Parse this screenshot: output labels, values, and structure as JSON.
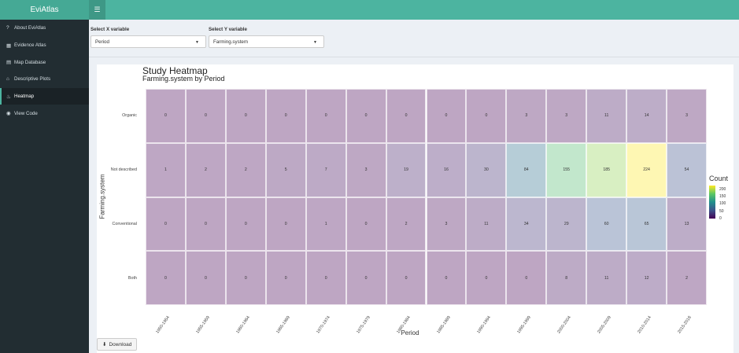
{
  "app": {
    "title": "EviAtlas",
    "menu_icon": "hamburger-icon"
  },
  "sidebar": {
    "items": [
      {
        "label": "About EviAtlas",
        "icon": "question-icon"
      },
      {
        "label": "Evidence Atlas",
        "icon": "map-icon"
      },
      {
        "label": "Map Database",
        "icon": "database-icon"
      },
      {
        "label": "Descriptive Plots",
        "icon": "home-icon"
      },
      {
        "label": "Heatmap",
        "icon": "fire-icon",
        "active": true
      },
      {
        "label": "View Code",
        "icon": "github-icon"
      }
    ]
  },
  "controls": {
    "x_label": "Select X variable",
    "x_value": "Period",
    "y_label": "Select Y variable",
    "y_value": "Farming.system"
  },
  "download_label": "Download",
  "chart_data": {
    "type": "heatmap",
    "title": "Study Heatmap",
    "subtitle": "Farming.system by Period",
    "xlabel": "Period",
    "ylabel": "Farming.system",
    "x": [
      "1950-1954",
      "1955-1959",
      "1960-1964",
      "1965-1969",
      "1970-1974",
      "1975-1979",
      "1980-1984",
      "1985-1989",
      "1990-1994",
      "1995-1999",
      "2000-2004",
      "2005-2009",
      "2010-2014",
      "2015-2016"
    ],
    "y": [
      "Organic",
      "Not described",
      "Conventional",
      "Both"
    ],
    "values": [
      [
        0,
        0,
        0,
        0,
        0,
        0,
        0,
        0,
        0,
        3,
        3,
        11,
        14,
        3
      ],
      [
        1,
        2,
        2,
        5,
        7,
        3,
        19,
        16,
        30,
        84,
        155,
        185,
        224,
        54
      ],
      [
        0,
        0,
        0,
        0,
        1,
        0,
        2,
        3,
        11,
        34,
        29,
        60,
        65,
        13
      ],
      [
        0,
        0,
        0,
        0,
        0,
        0,
        0,
        0,
        0,
        0,
        8,
        11,
        12,
        2
      ]
    ],
    "legend": {
      "title": "Count",
      "ticks": [
        200,
        150,
        100,
        50,
        0
      ],
      "range": [
        0,
        224
      ],
      "placement": "right",
      "colorscale": "viridis"
    }
  }
}
